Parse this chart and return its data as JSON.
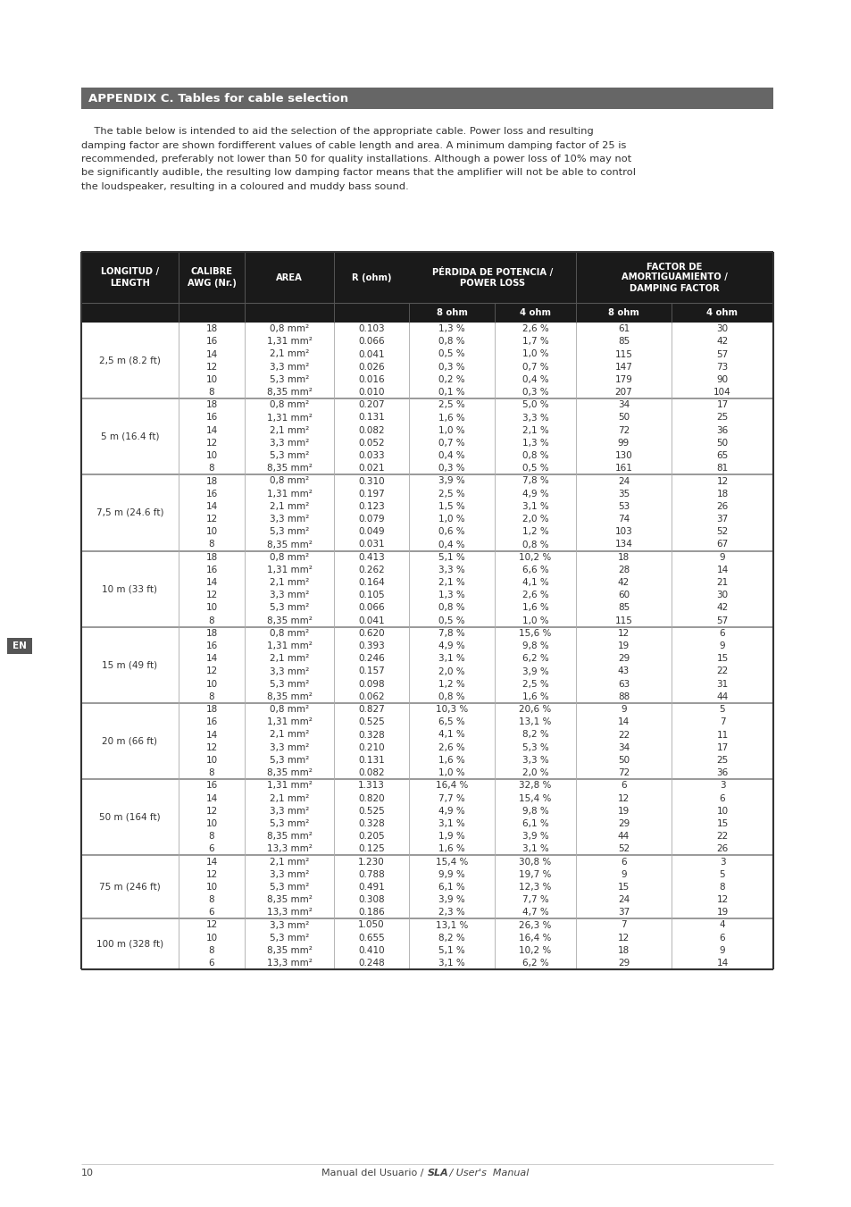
{
  "title": "APPENDIX C. Tables for cable selection",
  "intro_lines": [
    "    The table below is intended to aid the selection of the appropriate cable. Power loss and resulting",
    "damping factor are shown fordifferent values of cable length and area. A minimum damping factor of 25 is",
    "recommended, preferably not lower than 50 for quality installations. Although a power loss of 10% may not",
    "be significantly audible, the resulting low damping factor means that the amplifier will not be able to control",
    "the loudspeaker, resulting in a coloured and muddy bass sound."
  ],
  "rows": [
    {
      "length": "2,5 m (8.2 ft)",
      "entries": [
        {
          "awg": "18",
          "area": "0,8 mm²",
          "r": "0.103",
          "pl8": "1,3 %",
          "pl4": "2,6 %",
          "df8": "61",
          "df4": "30"
        },
        {
          "awg": "16",
          "area": "1,31 mm²",
          "r": "0.066",
          "pl8": "0,8 %",
          "pl4": "1,7 %",
          "df8": "85",
          "df4": "42"
        },
        {
          "awg": "14",
          "area": "2,1 mm²",
          "r": "0.041",
          "pl8": "0,5 %",
          "pl4": "1,0 %",
          "df8": "115",
          "df4": "57"
        },
        {
          "awg": "12",
          "area": "3,3 mm²",
          "r": "0.026",
          "pl8": "0,3 %",
          "pl4": "0,7 %",
          "df8": "147",
          "df4": "73"
        },
        {
          "awg": "10",
          "area": "5,3 mm²",
          "r": "0.016",
          "pl8": "0,2 %",
          "pl4": "0,4 %",
          "df8": "179",
          "df4": "90"
        },
        {
          "awg": "8",
          "area": "8,35 mm²",
          "r": "0.010",
          "pl8": "0,1 %",
          "pl4": "0,3 %",
          "df8": "207",
          "df4": "104"
        }
      ]
    },
    {
      "length": "5 m (16.4 ft)",
      "entries": [
        {
          "awg": "18",
          "area": "0,8 mm²",
          "r": "0.207",
          "pl8": "2,5 %",
          "pl4": "5,0 %",
          "df8": "34",
          "df4": "17"
        },
        {
          "awg": "16",
          "area": "1,31 mm²",
          "r": "0.131",
          "pl8": "1,6 %",
          "pl4": "3,3 %",
          "df8": "50",
          "df4": "25"
        },
        {
          "awg": "14",
          "area": "2,1 mm²",
          "r": "0.082",
          "pl8": "1,0 %",
          "pl4": "2,1 %",
          "df8": "72",
          "df4": "36"
        },
        {
          "awg": "12",
          "area": "3,3 mm²",
          "r": "0.052",
          "pl8": "0,7 %",
          "pl4": "1,3 %",
          "df8": "99",
          "df4": "50"
        },
        {
          "awg": "10",
          "area": "5,3 mm²",
          "r": "0.033",
          "pl8": "0,4 %",
          "pl4": "0,8 %",
          "df8": "130",
          "df4": "65"
        },
        {
          "awg": "8",
          "area": "8,35 mm²",
          "r": "0.021",
          "pl8": "0,3 %",
          "pl4": "0,5 %",
          "df8": "161",
          "df4": "81"
        }
      ]
    },
    {
      "length": "7,5 m (24.6 ft)",
      "entries": [
        {
          "awg": "18",
          "area": "0,8 mm²",
          "r": "0.310",
          "pl8": "3,9 %",
          "pl4": "7,8 %",
          "df8": "24",
          "df4": "12"
        },
        {
          "awg": "16",
          "area": "1,31 mm²",
          "r": "0.197",
          "pl8": "2,5 %",
          "pl4": "4,9 %",
          "df8": "35",
          "df4": "18"
        },
        {
          "awg": "14",
          "area": "2,1 mm²",
          "r": "0.123",
          "pl8": "1,5 %",
          "pl4": "3,1 %",
          "df8": "53",
          "df4": "26"
        },
        {
          "awg": "12",
          "area": "3,3 mm²",
          "r": "0.079",
          "pl8": "1,0 %",
          "pl4": "2,0 %",
          "df8": "74",
          "df4": "37"
        },
        {
          "awg": "10",
          "area": "5,3 mm²",
          "r": "0.049",
          "pl8": "0,6 %",
          "pl4": "1,2 %",
          "df8": "103",
          "df4": "52"
        },
        {
          "awg": "8",
          "area": "8,35 mm²",
          "r": "0.031",
          "pl8": "0,4 %",
          "pl4": "0,8 %",
          "df8": "134",
          "df4": "67"
        }
      ]
    },
    {
      "length": "10 m (33 ft)",
      "entries": [
        {
          "awg": "18",
          "area": "0,8 mm²",
          "r": "0.413",
          "pl8": "5,1 %",
          "pl4": "10,2 %",
          "df8": "18",
          "df4": "9"
        },
        {
          "awg": "16",
          "area": "1,31 mm²",
          "r": "0.262",
          "pl8": "3,3 %",
          "pl4": "6,6 %",
          "df8": "28",
          "df4": "14"
        },
        {
          "awg": "14",
          "area": "2,1 mm²",
          "r": "0.164",
          "pl8": "2,1 %",
          "pl4": "4,1 %",
          "df8": "42",
          "df4": "21"
        },
        {
          "awg": "12",
          "area": "3,3 mm²",
          "r": "0.105",
          "pl8": "1,3 %",
          "pl4": "2,6 %",
          "df8": "60",
          "df4": "30"
        },
        {
          "awg": "10",
          "area": "5,3 mm²",
          "r": "0.066",
          "pl8": "0,8 %",
          "pl4": "1,6 %",
          "df8": "85",
          "df4": "42"
        },
        {
          "awg": "8",
          "area": "8,35 mm²",
          "r": "0.041",
          "pl8": "0,5 %",
          "pl4": "1,0 %",
          "df8": "115",
          "df4": "57"
        }
      ]
    },
    {
      "length": "15 m (49 ft)",
      "entries": [
        {
          "awg": "18",
          "area": "0,8 mm²",
          "r": "0.620",
          "pl8": "7,8 %",
          "pl4": "15,6 %",
          "df8": "12",
          "df4": "6"
        },
        {
          "awg": "16",
          "area": "1,31 mm²",
          "r": "0.393",
          "pl8": "4,9 %",
          "pl4": "9,8 %",
          "df8": "19",
          "df4": "9"
        },
        {
          "awg": "14",
          "area": "2,1 mm²",
          "r": "0.246",
          "pl8": "3,1 %",
          "pl4": "6,2 %",
          "df8": "29",
          "df4": "15"
        },
        {
          "awg": "12",
          "area": "3,3 mm²",
          "r": "0.157",
          "pl8": "2,0 %",
          "pl4": "3,9 %",
          "df8": "43",
          "df4": "22"
        },
        {
          "awg": "10",
          "area": "5,3 mm²",
          "r": "0.098",
          "pl8": "1,2 %",
          "pl4": "2,5 %",
          "df8": "63",
          "df4": "31"
        },
        {
          "awg": "8",
          "area": "8,35 mm²",
          "r": "0.062",
          "pl8": "0,8 %",
          "pl4": "1,6 %",
          "df8": "88",
          "df4": "44"
        }
      ]
    },
    {
      "length": "20 m (66 ft)",
      "entries": [
        {
          "awg": "18",
          "area": "0,8 mm²",
          "r": "0.827",
          "pl8": "10,3 %",
          "pl4": "20,6 %",
          "df8": "9",
          "df4": "5"
        },
        {
          "awg": "16",
          "area": "1,31 mm²",
          "r": "0.525",
          "pl8": "6,5 %",
          "pl4": "13,1 %",
          "df8": "14",
          "df4": "7"
        },
        {
          "awg": "14",
          "area": "2,1 mm²",
          "r": "0.328",
          "pl8": "4,1 %",
          "pl4": "8,2 %",
          "df8": "22",
          "df4": "11"
        },
        {
          "awg": "12",
          "area": "3,3 mm²",
          "r": "0.210",
          "pl8": "2,6 %",
          "pl4": "5,3 %",
          "df8": "34",
          "df4": "17"
        },
        {
          "awg": "10",
          "area": "5,3 mm²",
          "r": "0.131",
          "pl8": "1,6 %",
          "pl4": "3,3 %",
          "df8": "50",
          "df4": "25"
        },
        {
          "awg": "8",
          "area": "8,35 mm²",
          "r": "0.082",
          "pl8": "1,0 %",
          "pl4": "2,0 %",
          "df8": "72",
          "df4": "36"
        }
      ]
    },
    {
      "length": "50 m (164 ft)",
      "entries": [
        {
          "awg": "16",
          "area": "1,31 mm²",
          "r": "1.313",
          "pl8": "16,4 %",
          "pl4": "32,8 %",
          "df8": "6",
          "df4": "3"
        },
        {
          "awg": "14",
          "area": "2,1 mm²",
          "r": "0.820",
          "pl8": "7,7 %",
          "pl4": "15,4 %",
          "df8": "12",
          "df4": "6"
        },
        {
          "awg": "12",
          "area": "3,3 mm²",
          "r": "0.525",
          "pl8": "4,9 %",
          "pl4": "9,8 %",
          "df8": "19",
          "df4": "10"
        },
        {
          "awg": "10",
          "area": "5,3 mm²",
          "r": "0.328",
          "pl8": "3,1 %",
          "pl4": "6,1 %",
          "df8": "29",
          "df4": "15"
        },
        {
          "awg": "8",
          "area": "8,35 mm²",
          "r": "0.205",
          "pl8": "1,9 %",
          "pl4": "3,9 %",
          "df8": "44",
          "df4": "22"
        },
        {
          "awg": "6",
          "area": "13,3 mm²",
          "r": "0.125",
          "pl8": "1,6 %",
          "pl4": "3,1 %",
          "df8": "52",
          "df4": "26"
        }
      ]
    },
    {
      "length": "75 m (246 ft)",
      "entries": [
        {
          "awg": "14",
          "area": "2,1 mm²",
          "r": "1.230",
          "pl8": "15,4 %",
          "pl4": "30,8 %",
          "df8": "6",
          "df4": "3"
        },
        {
          "awg": "12",
          "area": "3,3 mm²",
          "r": "0.788",
          "pl8": "9,9 %",
          "pl4": "19,7 %",
          "df8": "9",
          "df4": "5"
        },
        {
          "awg": "10",
          "area": "5,3 mm²",
          "r": "0.491",
          "pl8": "6,1 %",
          "pl4": "12,3 %",
          "df8": "15",
          "df4": "8"
        },
        {
          "awg": "8",
          "area": "8,35 mm²",
          "r": "0.308",
          "pl8": "3,9 %",
          "pl4": "7,7 %",
          "df8": "24",
          "df4": "12"
        },
        {
          "awg": "6",
          "area": "13,3 mm²",
          "r": "0.186",
          "pl8": "2,3 %",
          "pl4": "4,7 %",
          "df8": "37",
          "df4": "19"
        }
      ]
    },
    {
      "length": "100 m (328 ft)",
      "entries": [
        {
          "awg": "12",
          "area": "3,3 mm²",
          "r": "1.050",
          "pl8": "13,1 %",
          "pl4": "26,3 %",
          "df8": "7",
          "df4": "4"
        },
        {
          "awg": "10",
          "area": "5,3 mm²",
          "r": "0.655",
          "pl8": "8,2 %",
          "pl4": "16,4 %",
          "df8": "12",
          "df4": "6"
        },
        {
          "awg": "8",
          "area": "8,35 mm²",
          "r": "0.410",
          "pl8": "5,1 %",
          "pl4": "10,2 %",
          "df8": "18",
          "df4": "9"
        },
        {
          "awg": "6",
          "area": "13,3 mm²",
          "r": "0.248",
          "pl8": "3,1 %",
          "pl4": "6,2 %",
          "df8": "29",
          "df4": "14"
        }
      ]
    }
  ],
  "page_number": "10",
  "en_label": "EN",
  "title_bar_color": "#666666",
  "header_dark_color": "#1a1a1a",
  "header_mid_color": "#2d2d2d",
  "border_color": "#888888",
  "text_color": "#333333",
  "white": "#ffffff"
}
